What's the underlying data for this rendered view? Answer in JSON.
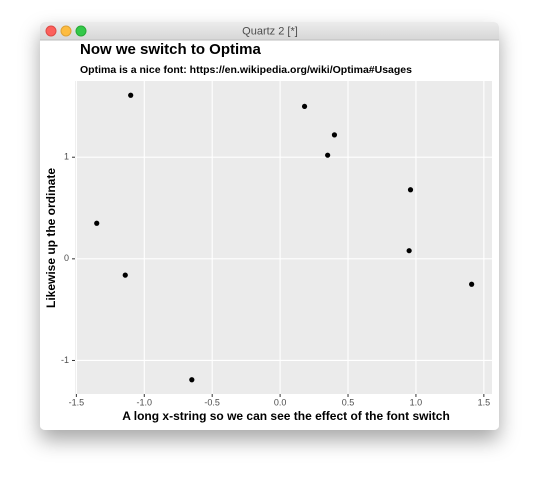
{
  "window": {
    "title": "Quartz 2 [*]"
  },
  "chart_data": {
    "type": "scatter",
    "title": "Now we switch to Optima",
    "subtitle": "Optima is a nice font: https://en.wikipedia.org/wiki/Optima#Usages",
    "x_label": "A long x-string so we can see the effect of the font switch",
    "y_label": "Likewise up the ordinate",
    "x": [
      -1.1,
      0.18,
      0.4,
      0.35,
      0.96,
      -1.35,
      0.95,
      -1.14,
      1.41,
      -0.65
    ],
    "values": [
      1.61,
      1.5,
      1.22,
      1.02,
      0.68,
      0.35,
      0.08,
      -0.16,
      -0.25,
      -1.19
    ],
    "color": "#000000",
    "xlim": [
      -1.51,
      1.56
    ],
    "ylim": [
      -1.33,
      1.75
    ],
    "xticks": [
      -1.5,
      {
        "value": -1.0,
        "label": "-1.0"
      },
      -0.5,
      {
        "value": 0,
        "label": "0.0"
      },
      0.5,
      {
        "value": 1.0,
        "label": "1.0"
      },
      1.5
    ],
    "yticks": [
      -1,
      0,
      1
    ],
    "grid": true
  }
}
